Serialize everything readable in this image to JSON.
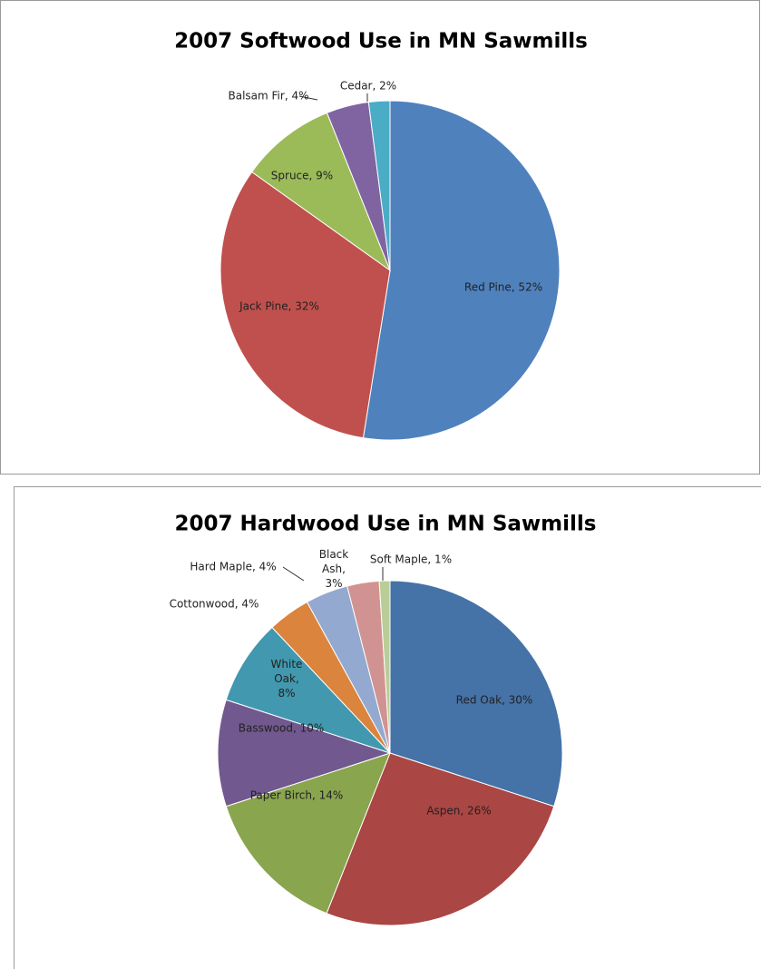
{
  "chart_data": [
    {
      "type": "pie",
      "title": "2007 Softwood Use in MN Sawmills",
      "values": [
        52,
        32,
        9,
        4,
        2
      ],
      "value_labels": [
        "Red Pine, 52%",
        "Jack Pine, 32%",
        "Spruce, 9%",
        "Balsam Fir, 4%",
        "Cedar, 2%"
      ],
      "colors": [
        "#4f81bd",
        "#c0504d",
        "#9bbb59",
        "#8064a2",
        "#4bacc6"
      ]
    },
    {
      "type": "pie",
      "title": "2007 Hardwood Use in MN Sawmills",
      "values": [
        30,
        26,
        14,
        10,
        8,
        4,
        4,
        3,
        1
      ],
      "value_labels": [
        "Red Oak, 30%",
        "Aspen, 26%",
        "Paper Birch, 14%",
        "Basswood, 10%",
        "White Oak, 8%",
        "Cottonwood, 4%",
        "Hard Maple, 4%",
        "Black Ash, 3%",
        "Soft Maple, 1%"
      ],
      "colors": [
        "#4572a7",
        "#aa4643",
        "#89a54e",
        "#71588f",
        "#4198af",
        "#db843d",
        "#93a9cf",
        "#d19392",
        "#b9cd96"
      ]
    }
  ]
}
